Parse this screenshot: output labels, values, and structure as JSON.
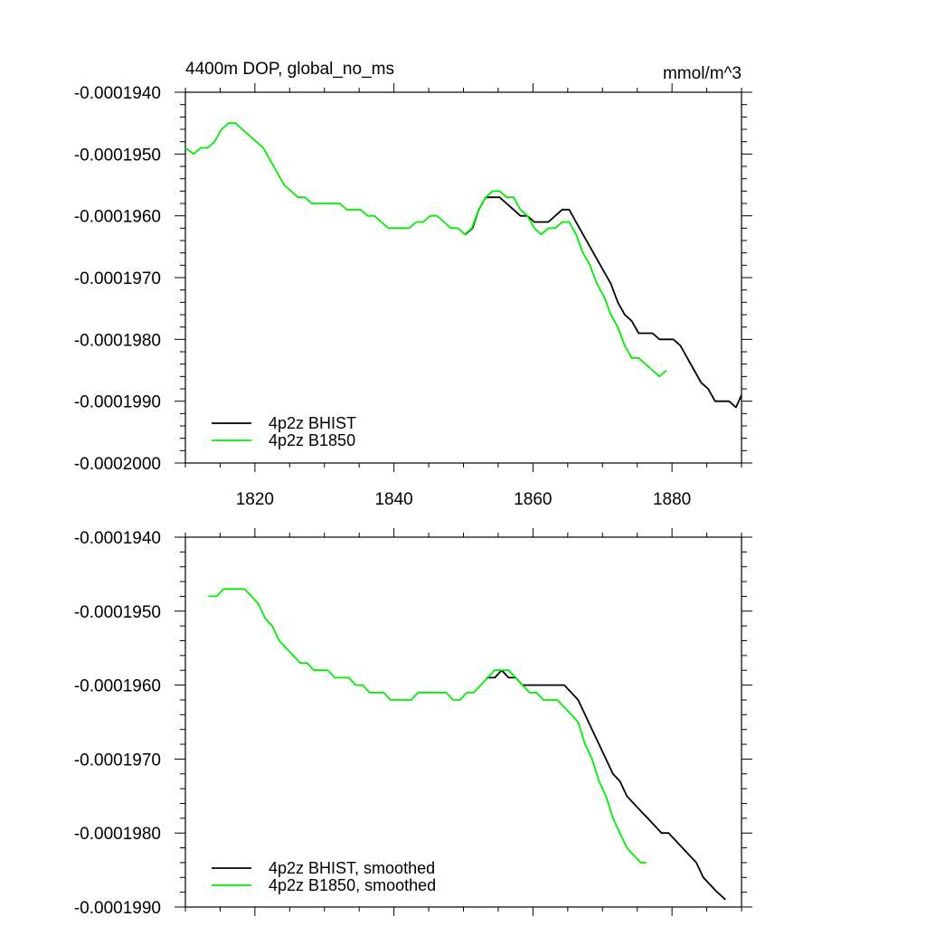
{
  "chart_data": [
    {
      "type": "line",
      "title": "4400m DOP, global_no_ms",
      "units": "mmol/m^3",
      "xlim": [
        1810,
        1890
      ],
      "ylim": [
        -0.0002,
        -0.000194
      ],
      "xticks": [
        1820,
        1840,
        1860,
        1880
      ],
      "xtick_labels": [
        "1820",
        "1840",
        "1860",
        "1880"
      ],
      "yticks": [
        -0.000194,
        -0.000195,
        -0.000196,
        -0.000197,
        -0.000198,
        -0.000199,
        -0.0002
      ],
      "ytick_labels": [
        "-0.0001940",
        "-0.0001950",
        "-0.0001960",
        "-0.0001970",
        "-0.0001980",
        "-0.0001990",
        "-0.0002000"
      ],
      "legend_position": "bottom-left",
      "series": [
        {
          "name": "4p2z BHIST",
          "color": "#000000",
          "points": [
            [
              1850.3,
              -0.0001963
            ],
            [
              1851.3,
              -0.0001962
            ],
            [
              1852.2,
              -0.0001959
            ],
            [
              1853.2,
              -0.0001957
            ],
            [
              1854.2,
              -0.0001957
            ],
            [
              1855.2,
              -0.0001957
            ],
            [
              1856.2,
              -0.0001958
            ],
            [
              1857.2,
              -0.0001959
            ],
            [
              1858.2,
              -0.000196
            ],
            [
              1859.2,
              -0.000196
            ],
            [
              1860.2,
              -0.0001961
            ],
            [
              1861.2,
              -0.0001961
            ],
            [
              1862.2,
              -0.0001961
            ],
            [
              1863.2,
              -0.000196
            ],
            [
              1864.2,
              -0.0001959
            ],
            [
              1865.2,
              -0.0001959
            ],
            [
              1866.2,
              -0.0001961
            ],
            [
              1867.2,
              -0.0001963
            ],
            [
              1868.2,
              -0.0001965
            ],
            [
              1869.2,
              -0.0001967
            ],
            [
              1870.2,
              -0.0001969
            ],
            [
              1871.2,
              -0.0001971
            ],
            [
              1872.2,
              -0.0001974
            ],
            [
              1873.2,
              -0.0001976
            ],
            [
              1874.2,
              -0.0001977
            ],
            [
              1875.2,
              -0.0001979
            ],
            [
              1876.2,
              -0.0001979
            ],
            [
              1877.2,
              -0.0001979
            ],
            [
              1878.2,
              -0.000198
            ],
            [
              1879.2,
              -0.000198
            ],
            [
              1880.2,
              -0.000198
            ],
            [
              1881.2,
              -0.0001981
            ],
            [
              1882.2,
              -0.0001983
            ],
            [
              1883.2,
              -0.0001985
            ],
            [
              1884.2,
              -0.0001987
            ],
            [
              1885.2,
              -0.0001988
            ],
            [
              1886.2,
              -0.000199
            ],
            [
              1887.2,
              -0.000199
            ],
            [
              1888.2,
              -0.000199
            ],
            [
              1889.2,
              -0.0001991
            ],
            [
              1890,
              -0.0001989
            ]
          ]
        },
        {
          "name": "4p2z B1850",
          "color": "#00ee00",
          "points": [
            [
              1810,
              -0.0001949
            ],
            [
              1811.2,
              -0.000195
            ],
            [
              1812.2,
              -0.0001949
            ],
            [
              1813.2,
              -0.0001949
            ],
            [
              1814.2,
              -0.0001948
            ],
            [
              1815.2,
              -0.0001946
            ],
            [
              1816.2,
              -0.0001945
            ],
            [
              1817.2,
              -0.0001945
            ],
            [
              1818.2,
              -0.0001946
            ],
            [
              1819.2,
              -0.0001947
            ],
            [
              1820.2,
              -0.0001948
            ],
            [
              1821.2,
              -0.0001949
            ],
            [
              1822.2,
              -0.0001951
            ],
            [
              1823.2,
              -0.0001953
            ],
            [
              1824.2,
              -0.0001955
            ],
            [
              1825.2,
              -0.0001956
            ],
            [
              1826.2,
              -0.0001957
            ],
            [
              1827.2,
              -0.0001957
            ],
            [
              1828.2,
              -0.0001958
            ],
            [
              1829.2,
              -0.0001958
            ],
            [
              1830.2,
              -0.0001958
            ],
            [
              1831.2,
              -0.0001958
            ],
            [
              1832.2,
              -0.0001958
            ],
            [
              1833.2,
              -0.0001959
            ],
            [
              1834.2,
              -0.0001959
            ],
            [
              1835.2,
              -0.0001959
            ],
            [
              1836.2,
              -0.000196
            ],
            [
              1837.2,
              -0.000196
            ],
            [
              1838.2,
              -0.0001961
            ],
            [
              1839.2,
              -0.0001962
            ],
            [
              1840.2,
              -0.0001962
            ],
            [
              1841.2,
              -0.0001962
            ],
            [
              1842.2,
              -0.0001962
            ],
            [
              1843.2,
              -0.0001961
            ],
            [
              1844.2,
              -0.0001961
            ],
            [
              1845.2,
              -0.000196
            ],
            [
              1846.2,
              -0.000196
            ],
            [
              1847.2,
              -0.0001961
            ],
            [
              1848.2,
              -0.0001962
            ],
            [
              1849.2,
              -0.0001962
            ],
            [
              1850.2,
              -0.0001963
            ],
            [
              1851.2,
              -0.0001962
            ],
            [
              1852.2,
              -0.0001959
            ],
            [
              1853.2,
              -0.0001957
            ],
            [
              1854.2,
              -0.0001956
            ],
            [
              1855.2,
              -0.0001956
            ],
            [
              1856.2,
              -0.0001957
            ],
            [
              1857.2,
              -0.0001957
            ],
            [
              1858.2,
              -0.0001959
            ],
            [
              1859.2,
              -0.000196
            ],
            [
              1860.2,
              -0.0001962
            ],
            [
              1861.2,
              -0.0001963
            ],
            [
              1862.2,
              -0.0001962
            ],
            [
              1863.2,
              -0.0001962
            ],
            [
              1864.2,
              -0.0001961
            ],
            [
              1865.2,
              -0.0001961
            ],
            [
              1866.2,
              -0.0001963
            ],
            [
              1867.2,
              -0.0001966
            ],
            [
              1868.2,
              -0.0001968
            ],
            [
              1869.2,
              -0.0001971
            ],
            [
              1870.2,
              -0.0001973
            ],
            [
              1871.2,
              -0.0001976
            ],
            [
              1872.2,
              -0.0001978
            ],
            [
              1873.2,
              -0.0001981
            ],
            [
              1874.2,
              -0.0001983
            ],
            [
              1875.2,
              -0.0001983
            ],
            [
              1876.2,
              -0.0001984
            ],
            [
              1877.2,
              -0.0001985
            ],
            [
              1878.2,
              -0.0001986
            ],
            [
              1879.2,
              -0.0001985
            ]
          ]
        }
      ]
    },
    {
      "type": "line",
      "title": "",
      "xlim": [
        1810,
        1890
      ],
      "ylim": [
        -0.000199,
        -0.000194
      ],
      "xticks": [
        1820,
        1840,
        1860,
        1880
      ],
      "xtick_labels": [],
      "yticks": [
        -0.000194,
        -0.000195,
        -0.000196,
        -0.000197,
        -0.000198,
        -0.000199
      ],
      "ytick_labels": [
        "-0.0001940",
        "-0.0001950",
        "-0.0001960",
        "-0.0001970",
        "-0.0001980",
        "-0.0001990"
      ],
      "legend_position": "bottom-left",
      "series": [
        {
          "name": "4p2z BHIST, smoothed",
          "color": "#000000",
          "points": [
            [
              1853.3,
              -0.0001959
            ],
            [
              1854.5,
              -0.0001959
            ],
            [
              1855.5,
              -0.0001958
            ],
            [
              1856.5,
              -0.0001959
            ],
            [
              1857.5,
              -0.0001959
            ],
            [
              1858.5,
              -0.000196
            ],
            [
              1859.5,
              -0.000196
            ],
            [
              1860.5,
              -0.000196
            ],
            [
              1861.5,
              -0.000196
            ],
            [
              1862.5,
              -0.000196
            ],
            [
              1863.5,
              -0.000196
            ],
            [
              1864.5,
              -0.000196
            ],
            [
              1865.5,
              -0.0001961
            ],
            [
              1866.5,
              -0.0001962
            ],
            [
              1867.5,
              -0.0001964
            ],
            [
              1868.5,
              -0.0001966
            ],
            [
              1869.5,
              -0.0001968
            ],
            [
              1870.5,
              -0.000197
            ],
            [
              1871.5,
              -0.0001972
            ],
            [
              1872.5,
              -0.0001973
            ],
            [
              1873.5,
              -0.0001975
            ],
            [
              1874.5,
              -0.0001976
            ],
            [
              1875.5,
              -0.0001977
            ],
            [
              1876.5,
              -0.0001978
            ],
            [
              1877.5,
              -0.0001979
            ],
            [
              1878.5,
              -0.000198
            ],
            [
              1879.5,
              -0.000198
            ],
            [
              1880.5,
              -0.0001981
            ],
            [
              1881.5,
              -0.0001982
            ],
            [
              1882.5,
              -0.0001983
            ],
            [
              1883.5,
              -0.0001984
            ],
            [
              1884.5,
              -0.0001986
            ],
            [
              1885.5,
              -0.0001987
            ],
            [
              1886.5,
              -0.0001988
            ],
            [
              1887.7,
              -0.0001989
            ]
          ]
        },
        {
          "name": "4p2z B1850, smoothed",
          "color": "#00ee00",
          "points": [
            [
              1813.3,
              -0.0001948
            ],
            [
              1814.5,
              -0.0001948
            ],
            [
              1815.5,
              -0.0001947
            ],
            [
              1816.5,
              -0.0001947
            ],
            [
              1817.5,
              -0.0001947
            ],
            [
              1818.5,
              -0.0001947
            ],
            [
              1819.5,
              -0.0001948
            ],
            [
              1820.5,
              -0.0001949
            ],
            [
              1821.5,
              -0.0001951
            ],
            [
              1822.5,
              -0.0001952
            ],
            [
              1823.5,
              -0.0001954
            ],
            [
              1824.5,
              -0.0001955
            ],
            [
              1825.5,
              -0.0001956
            ],
            [
              1826.5,
              -0.0001957
            ],
            [
              1827.5,
              -0.0001957
            ],
            [
              1828.5,
              -0.0001958
            ],
            [
              1829.5,
              -0.0001958
            ],
            [
              1830.5,
              -0.0001958
            ],
            [
              1831.5,
              -0.0001959
            ],
            [
              1832.5,
              -0.0001959
            ],
            [
              1833.5,
              -0.0001959
            ],
            [
              1834.5,
              -0.000196
            ],
            [
              1835.5,
              -0.000196
            ],
            [
              1836.5,
              -0.0001961
            ],
            [
              1837.5,
              -0.0001961
            ],
            [
              1838.5,
              -0.0001961
            ],
            [
              1839.5,
              -0.0001962
            ],
            [
              1840.5,
              -0.0001962
            ],
            [
              1841.5,
              -0.0001962
            ],
            [
              1842.5,
              -0.0001962
            ],
            [
              1843.5,
              -0.0001961
            ],
            [
              1844.5,
              -0.0001961
            ],
            [
              1845.5,
              -0.0001961
            ],
            [
              1846.5,
              -0.0001961
            ],
            [
              1847.5,
              -0.0001961
            ],
            [
              1848.5,
              -0.0001962
            ],
            [
              1849.5,
              -0.0001962
            ],
            [
              1850.5,
              -0.0001961
            ],
            [
              1851.5,
              -0.0001961
            ],
            [
              1852.5,
              -0.000196
            ],
            [
              1853.5,
              -0.0001959
            ],
            [
              1854.5,
              -0.0001958
            ],
            [
              1855.5,
              -0.0001958
            ],
            [
              1856.5,
              -0.0001958
            ],
            [
              1857.5,
              -0.0001959
            ],
            [
              1858.5,
              -0.000196
            ],
            [
              1859.5,
              -0.0001961
            ],
            [
              1860.5,
              -0.0001961
            ],
            [
              1861.5,
              -0.0001962
            ],
            [
              1862.5,
              -0.0001962
            ],
            [
              1863.5,
              -0.0001962
            ],
            [
              1864.5,
              -0.0001963
            ],
            [
              1865.5,
              -0.0001964
            ],
            [
              1866.5,
              -0.0001965
            ],
            [
              1867.5,
              -0.0001968
            ],
            [
              1868.5,
              -0.000197
            ],
            [
              1869.5,
              -0.0001973
            ],
            [
              1870.5,
              -0.0001975
            ],
            [
              1871.5,
              -0.0001978
            ],
            [
              1872.5,
              -0.000198
            ],
            [
              1873.5,
              -0.0001982
            ],
            [
              1874.5,
              -0.0001983
            ],
            [
              1875.5,
              -0.0001984
            ],
            [
              1876.3,
              -0.0001984
            ]
          ]
        }
      ]
    }
  ]
}
